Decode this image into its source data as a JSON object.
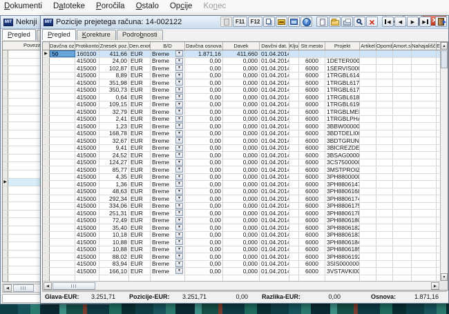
{
  "menubar": {
    "items": [
      {
        "id": "dokumenti",
        "label": "Dokumenti",
        "hotkey": 0
      },
      {
        "id": "datoteke",
        "label": "Datoteke",
        "hotkey": 1
      },
      {
        "id": "porocila",
        "label": "Poročila",
        "hotkey": 0
      },
      {
        "id": "ostalo",
        "label": "Ostalo",
        "hotkey": 0
      },
      {
        "id": "opcije",
        "label": "Opcije",
        "hotkey": 2
      },
      {
        "id": "konec",
        "label": "Konec",
        "hotkey": 2,
        "disabled": true
      }
    ]
  },
  "background_window": {
    "title": "Neknji",
    "tabs": [
      {
        "id": "pregled",
        "label": "Pregled",
        "hotkey": 0,
        "active": true
      },
      {
        "id": "korekture",
        "label": "Ko",
        "hotkey": 0
      }
    ],
    "column_header": "Poveza"
  },
  "dialog": {
    "title": "Pozicije prejetega računa: 14-002122",
    "tabs": [
      {
        "id": "pregled",
        "label": "Pregled",
        "hotkey": 0,
        "active": true
      },
      {
        "id": "korekture",
        "label": "Korekture",
        "hotkey": 0
      },
      {
        "id": "podrobnosti",
        "label": "Podrobnosti",
        "hotkey": 5
      }
    ],
    "toolbar": {
      "buttons": [
        {
          "name": "inactive-tool",
          "icon": "doc",
          "disabled": true
        },
        {
          "name": "f11",
          "label": "F11"
        },
        {
          "name": "f12",
          "label": "F12"
        },
        {
          "name": "copy",
          "icon": "copy"
        },
        {
          "name": "archive",
          "icon": "archive"
        },
        {
          "name": "monitor",
          "icon": "monitor"
        },
        {
          "name": "help",
          "icon": "help"
        },
        {
          "name": "new-record",
          "icon": "new"
        },
        {
          "name": "open",
          "icon": "open"
        },
        {
          "name": "print",
          "icon": "print"
        },
        {
          "name": "search",
          "icon": "search"
        },
        {
          "name": "delete",
          "icon": "delete"
        },
        {
          "name": "nav-first",
          "icon": "first"
        },
        {
          "name": "nav-prev",
          "icon": "prev"
        },
        {
          "name": "nav-next",
          "icon": "next"
        },
        {
          "name": "nav-last",
          "icon": "last"
        },
        {
          "name": "exit",
          "icon": "exit"
        }
      ]
    },
    "grid": {
      "columns": [
        "Davčna oz.",
        "Protikonto",
        "Znesek poz.",
        "Den.enota",
        "B/D",
        "Davčna osnova",
        "Davek",
        "Davčni dat.",
        "Ključ",
        "Str.mesto",
        "Projekt",
        "Artikel",
        "Opombe",
        "Amort.sk.",
        "Nahajališče",
        "EUL",
        "Da"
      ],
      "selected_row": 0,
      "rows": [
        [
          "50",
          "160100",
          "411,66",
          "EUR",
          "Breme",
          "1.871,16",
          "411,660",
          "01.04.2014",
          "",
          "",
          "",
          "",
          "",
          "",
          "",
          ",",
          ","
        ],
        [
          "",
          "415000",
          "24,00",
          "EUR",
          "Breme",
          "0,00",
          "0,000",
          "01.04.2014",
          "",
          "6000",
          "1DETER000",
          "",
          "",
          "",
          "",
          ",",
          ","
        ],
        [
          "",
          "415000",
          "102,87",
          "EUR",
          "Breme",
          "0,00",
          "0,000",
          "01.04.2014",
          "",
          "6000",
          "1SERVIS000",
          "",
          "",
          "",
          "",
          ",",
          ","
        ],
        [
          "",
          "415000",
          "8,89",
          "EUR",
          "Breme",
          "0,00",
          "0,000",
          "01.04.2014",
          "",
          "6000",
          "1TRGBL614",
          "",
          "",
          "",
          "",
          ",",
          ","
        ],
        [
          "",
          "415000",
          "351,98",
          "EUR",
          "Breme",
          "0,00",
          "0,000",
          "01.04.2014",
          "",
          "6000",
          "1TRGBL617",
          "",
          "",
          "",
          "",
          ",",
          ","
        ],
        [
          "",
          "415000",
          "350,73",
          "EUR",
          "Breme",
          "0,00",
          "0,000",
          "01.04.2014",
          "",
          "6000",
          "1TRGBL617",
          "",
          "",
          "",
          "",
          ",",
          ","
        ],
        [
          "",
          "415000",
          "0,64",
          "EUR",
          "Breme",
          "0,00",
          "0,000",
          "01.04.2014",
          "",
          "6000",
          "1TRGBL618",
          "",
          "",
          "",
          "",
          ",",
          ","
        ],
        [
          "",
          "415000",
          "109,15",
          "EUR",
          "Breme",
          "0,00",
          "0,000",
          "01.04.2014",
          "",
          "6000",
          "1TRGBL619",
          "",
          "",
          "",
          "",
          ",",
          ","
        ],
        [
          "",
          "415000",
          "32,79",
          "EUR",
          "Breme",
          "0,00",
          "0,000",
          "01.04.2014",
          "",
          "6000",
          "1TRGBLMED",
          "",
          "",
          "",
          "",
          ",",
          ","
        ],
        [
          "",
          "415000",
          "2,41",
          "EUR",
          "Breme",
          "0,00",
          "0,000",
          "01.04.2014",
          "",
          "6000",
          "1TRGBLPHA",
          "",
          "",
          "",
          "",
          ",",
          ","
        ],
        [
          "",
          "415000",
          "1,23",
          "EUR",
          "Breme",
          "0,00",
          "0,000",
          "01.04.2014",
          "",
          "6000",
          "3BBW00000",
          "",
          "",
          "",
          "",
          ",",
          ","
        ],
        [
          "",
          "415000",
          "168,78",
          "EUR",
          "Breme",
          "0,00",
          "0,000",
          "01.04.2014",
          "",
          "6000",
          "3BDTDELI00",
          "",
          "",
          "",
          "",
          ",",
          ","
        ],
        [
          "",
          "415000",
          "32,67",
          "EUR",
          "Breme",
          "0,00",
          "0,000",
          "01.04.2014",
          "",
          "6000",
          "3BDTGRUN",
          "",
          "",
          "",
          "",
          ",",
          ","
        ],
        [
          "",
          "415000",
          "9,41",
          "EUR",
          "Breme",
          "0,00",
          "0,000",
          "01.04.2014",
          "",
          "6000",
          "3BICREZDE",
          "",
          "",
          "",
          "",
          ",",
          ","
        ],
        [
          "",
          "415000",
          "24,52",
          "EUR",
          "Breme",
          "0,00",
          "0,000",
          "01.04.2014",
          "",
          "6000",
          "3BSAG0000",
          "",
          "",
          "",
          "",
          ",",
          ","
        ],
        [
          "",
          "415000",
          "124,27",
          "EUR",
          "Breme",
          "0,00",
          "0,000",
          "01.04.2014",
          "",
          "6000",
          "3CS7500000",
          "",
          "",
          "",
          "",
          ",",
          ","
        ],
        [
          "",
          "415000",
          "85,77",
          "EUR",
          "Breme",
          "0,00",
          "0,000",
          "01.04.2014",
          "",
          "6000",
          "3MSTPROIZ",
          "",
          "",
          "",
          "",
          ",",
          ","
        ],
        [
          "",
          "415000",
          "4,35",
          "EUR",
          "Breme",
          "0,00",
          "0,000",
          "01.04.2014",
          "",
          "6000",
          "3PH8800000",
          "",
          "",
          "",
          "",
          ",",
          ","
        ],
        [
          "",
          "415000",
          "1,36",
          "EUR",
          "Breme",
          "0,00",
          "0,000",
          "01.04.2014",
          "",
          "6000",
          "3PH8806147",
          "",
          "",
          "",
          "",
          ",",
          ","
        ],
        [
          "",
          "415000",
          "48,63",
          "EUR",
          "Breme",
          "0,00",
          "0,000",
          "01.04.2014",
          "",
          "6000",
          "3PH8806168",
          "",
          "",
          "",
          "",
          ",",
          ","
        ],
        [
          "",
          "415000",
          "292,34",
          "EUR",
          "Breme",
          "0,00",
          "0,000",
          "01.04.2014",
          "",
          "6000",
          "3PH8806174",
          "",
          "",
          "",
          "",
          ",",
          ","
        ],
        [
          "",
          "415000",
          "334,06",
          "EUR",
          "Breme",
          "0,00",
          "0,000",
          "01.04.2014",
          "",
          "6000",
          "3PH8806175",
          "",
          "",
          "",
          "",
          ",",
          ","
        ],
        [
          "",
          "415000",
          "251,31",
          "EUR",
          "Breme",
          "0,00",
          "0,000",
          "01.04.2014",
          "",
          "6000",
          "3PH8806178",
          "",
          "",
          "",
          "",
          ",",
          ","
        ],
        [
          "",
          "415000",
          "72,49",
          "EUR",
          "Breme",
          "0,00",
          "0,000",
          "01.04.2014",
          "",
          "6000",
          "3PH8806180",
          "",
          "",
          "",
          "",
          ",",
          ","
        ],
        [
          "",
          "415000",
          "35,40",
          "EUR",
          "Breme",
          "0,00",
          "0,000",
          "01.04.2014",
          "",
          "6000",
          "3PH8806182",
          "",
          "",
          "",
          "",
          ",",
          ","
        ],
        [
          "",
          "415000",
          "10,18",
          "EUR",
          "Breme",
          "0,00",
          "0,000",
          "01.04.2014",
          "",
          "6000",
          "3PH8806183",
          "",
          "",
          "",
          "",
          ",",
          ","
        ],
        [
          "",
          "415000",
          "10,88",
          "EUR",
          "Breme",
          "0,00",
          "0,000",
          "01.04.2014",
          "",
          "6000",
          "3PH8806184",
          "",
          "",
          "",
          "",
          ",",
          ","
        ],
        [
          "",
          "415000",
          "10,88",
          "EUR",
          "Breme",
          "0,00",
          "0,000",
          "01.04.2014",
          "",
          "6000",
          "3PH8806185",
          "",
          "",
          "",
          "",
          ",",
          ","
        ],
        [
          "",
          "415000",
          "88,02",
          "EUR",
          "Breme",
          "0,00",
          "0,000",
          "01.04.2014",
          "",
          "6000",
          "3PH8806192",
          "",
          "",
          "",
          "",
          ",",
          ","
        ],
        [
          "",
          "415000",
          "83,94",
          "EUR",
          "Breme",
          "0,00",
          "0,000",
          "01.04.2014",
          "",
          "6000",
          "3SIS000000",
          "",
          "",
          "",
          "",
          ",",
          ","
        ],
        [
          "",
          "415000",
          "166,10",
          "EUR",
          "Breme",
          "0,00",
          "0,000",
          "01.04.2014",
          "",
          "6000",
          "3VSTAVKI00",
          "",
          "",
          "",
          "",
          ",",
          ","
        ]
      ]
    },
    "footer": {
      "glava_label": "Glava-EUR:",
      "glava_value": "3.251,71",
      "pozicije_label": "Pozicije-EUR:",
      "pozicije_value": "3.251,71",
      "extra_value": "0,00",
      "razlika_label": "Razlika-EUR:",
      "razlika_value": "0,00",
      "osnova_label": "Osnova:",
      "osnova_value": "1.871,16"
    },
    "logo_text": "MIT"
  }
}
